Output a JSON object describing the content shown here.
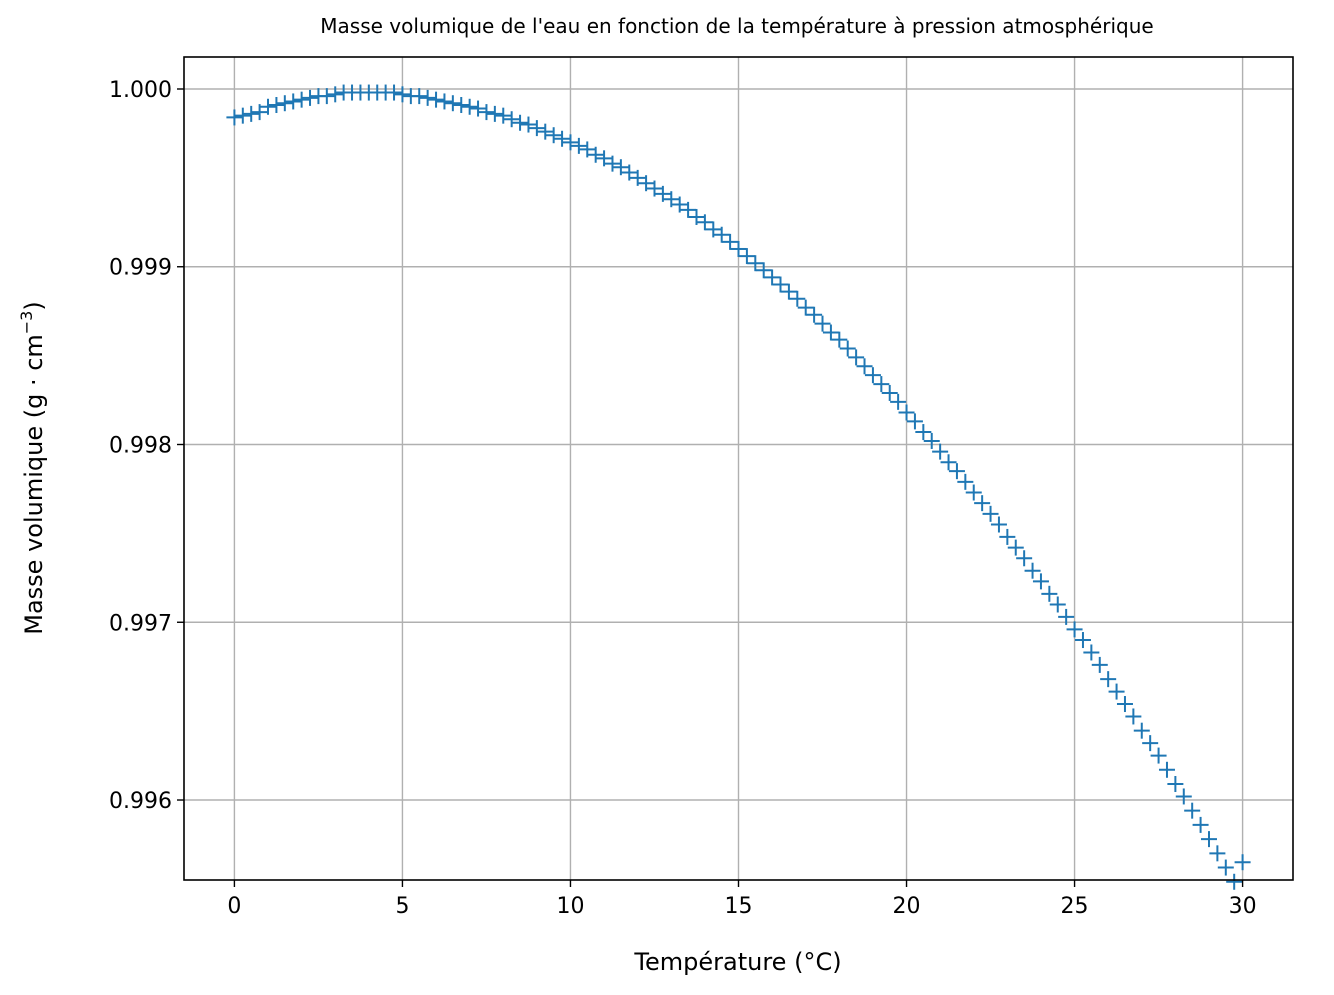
{
  "chart_data": {
    "type": "scatter",
    "title": "Masse volumique de l'eau en fonction de la température à pression atmosphérique",
    "xlabel": "Température (°C)",
    "ylabel_main": "Masse volumique (g · cm",
    "ylabel_sup": "−3",
    "ylabel_close": ")",
    "xlim": [
      -1.5,
      31.5
    ],
    "ylim": [
      0.99555,
      1.00018
    ],
    "xticks": [
      0,
      5,
      10,
      15,
      20,
      25,
      30
    ],
    "xtick_labels": [
      "0",
      "5",
      "10",
      "15",
      "20",
      "25",
      "30"
    ],
    "yticks": [
      0.996,
      0.997,
      0.998,
      0.999,
      1.0
    ],
    "ytick_labels": [
      "0.996",
      "0.997",
      "0.998",
      "0.999",
      "1.000"
    ],
    "grid": true,
    "marker": "+",
    "color": "#1f77b4",
    "x": [
      0.0,
      0.25,
      0.5,
      0.75,
      1.0,
      1.25,
      1.5,
      1.75,
      2.0,
      2.25,
      2.5,
      2.75,
      3.0,
      3.25,
      3.5,
      3.75,
      4.0,
      4.25,
      4.5,
      4.75,
      5.0,
      5.25,
      5.5,
      5.75,
      6.0,
      6.25,
      6.5,
      6.75,
      7.0,
      7.25,
      7.5,
      7.75,
      8.0,
      8.25,
      8.5,
      8.75,
      9.0,
      9.25,
      9.5,
      9.75,
      10.0,
      10.25,
      10.5,
      10.75,
      11.0,
      11.25,
      11.5,
      11.75,
      12.0,
      12.25,
      12.5,
      12.75,
      13.0,
      13.25,
      13.5,
      13.75,
      14.0,
      14.25,
      14.5,
      14.75,
      15.0,
      15.25,
      15.5,
      15.75,
      16.0,
      16.25,
      16.5,
      16.75,
      17.0,
      17.25,
      17.5,
      17.75,
      18.0,
      18.25,
      18.5,
      18.75,
      19.0,
      19.25,
      19.5,
      19.75,
      20.0,
      20.25,
      20.5,
      20.75,
      21.0,
      21.25,
      21.5,
      21.75,
      22.0,
      22.25,
      22.5,
      22.75,
      23.0,
      23.25,
      23.5,
      23.75,
      24.0,
      24.25,
      24.5,
      24.75,
      25.0,
      25.25,
      25.5,
      25.75,
      26.0,
      26.25,
      26.5,
      26.75,
      27.0,
      27.25,
      27.5,
      27.75,
      28.0,
      28.25,
      28.5,
      28.75,
      29.0,
      29.25,
      29.5,
      29.75,
      30.0
    ],
    "y": [
      0.99984,
      0.99985,
      0.99986,
      0.99987,
      0.9999,
      0.99991,
      0.99992,
      0.99993,
      0.99994,
      0.99995,
      0.99996,
      0.99996,
      0.99997,
      0.99998,
      0.99998,
      0.99998,
      0.99998,
      0.99998,
      0.99998,
      0.99998,
      0.99997,
      0.99996,
      0.99996,
      0.99995,
      0.99994,
      0.99993,
      0.99992,
      0.99991,
      0.9999,
      0.99989,
      0.99987,
      0.99986,
      0.99985,
      0.99983,
      0.99981,
      0.9998,
      0.99978,
      0.99976,
      0.99974,
      0.99972,
      0.9997,
      0.99968,
      0.99966,
      0.99963,
      0.99961,
      0.99958,
      0.99956,
      0.99953,
      0.9995,
      0.99947,
      0.99944,
      0.99941,
      0.99938,
      0.99935,
      0.99932,
      0.99928,
      0.99925,
      0.99921,
      0.99918,
      0.99914,
      0.9991,
      0.99906,
      0.99902,
      0.99898,
      0.99894,
      0.9989,
      0.99886,
      0.99882,
      0.99877,
      0.99873,
      0.99868,
      0.99863,
      0.99859,
      0.99854,
      0.99849,
      0.99844,
      0.99839,
      0.99834,
      0.99829,
      0.99824,
      0.99818,
      0.99813,
      0.99807,
      0.99802,
      0.99796,
      0.9979,
      0.99785,
      0.99779,
      0.99773,
      0.99767,
      0.99761,
      0.99755,
      0.99748,
      0.99742,
      0.99736,
      0.99729,
      0.99723,
      0.99716,
      0.9971,
      0.99703,
      0.99696,
      0.9969,
      0.99683,
      0.99676,
      0.99668,
      0.99661,
      0.99654,
      0.99647,
      0.99639,
      0.99632,
      0.99625,
      0.99617,
      0.99609,
      0.99602,
      0.99594,
      0.99586,
      0.99578,
      0.9957,
      0.99562,
      0.99554,
      0.99565
    ]
  }
}
